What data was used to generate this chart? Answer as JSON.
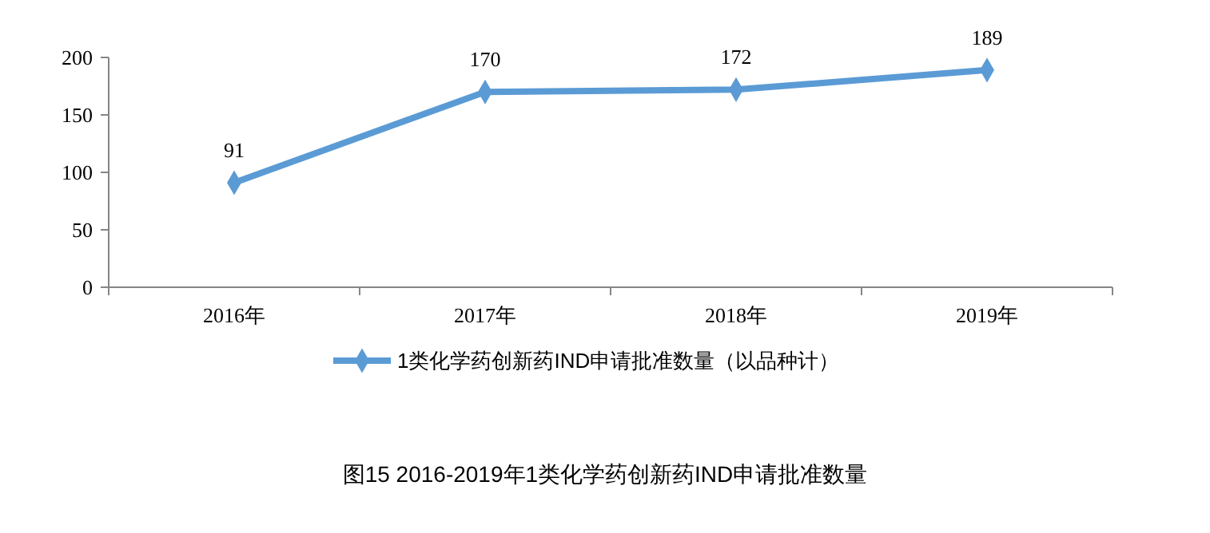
{
  "chart_data": {
    "type": "line",
    "categories": [
      "2016年",
      "2017年",
      "2018年",
      "2019年"
    ],
    "series": [
      {
        "name": "1类化学药创新药IND申请批准数量（以品种计）",
        "color": "#5b9bd5",
        "values": [
          91,
          170,
          172,
          189
        ]
      }
    ],
    "ylim": [
      0,
      200
    ],
    "yticks": [
      0,
      50,
      100,
      150,
      200
    ],
    "grid": false,
    "legend": "bottom",
    "marker": "diamond",
    "line_style": "solid",
    "data_labels": true,
    "annotations": [
      "图15 2016-2019年1类化学药创新药IND申请批准数量"
    ]
  }
}
